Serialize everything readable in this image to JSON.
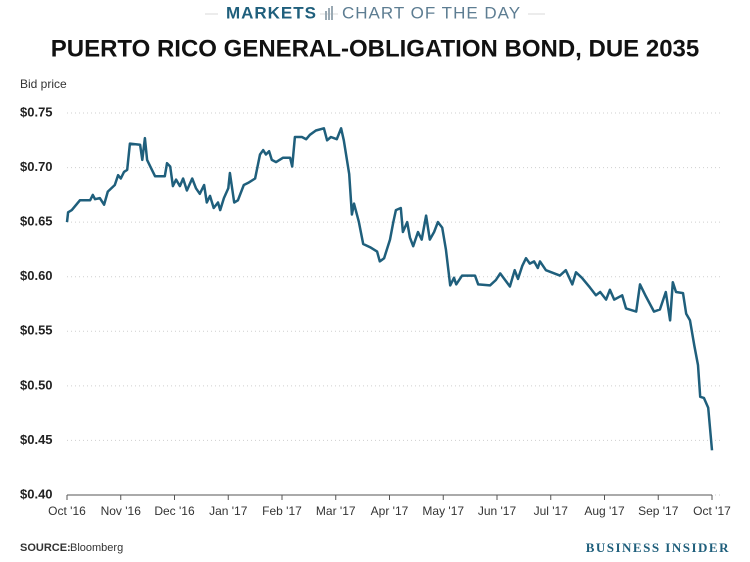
{
  "chart_data": {
    "type": "line",
    "kicker": "MARKETS",
    "kicker_sub": "CHART OF THE DAY",
    "title": "PUERTO RICO GENERAL-OBLIGATION BOND, DUE 2035",
    "ylabel": "Bid price",
    "source_label": "SOURCE:",
    "source": "Bloomberg",
    "brand": "BUSINESS INSIDER",
    "grid": true,
    "xlim": [
      0,
      12
    ],
    "ylim": [
      0.4,
      0.75
    ],
    "xticks": [
      {
        "value": 0,
        "label": "Oct '16"
      },
      {
        "value": 1,
        "label": "Nov '16"
      },
      {
        "value": 2,
        "label": "Dec '16"
      },
      {
        "value": 3,
        "label": "Jan '17"
      },
      {
        "value": 4,
        "label": "Feb '17"
      },
      {
        "value": 5,
        "label": "Mar '17"
      },
      {
        "value": 6,
        "label": "Apr '17"
      },
      {
        "value": 7,
        "label": "May '17"
      },
      {
        "value": 8,
        "label": "Jun '17"
      },
      {
        "value": 9,
        "label": "Jul '17"
      },
      {
        "value": 10,
        "label": "Aug '17"
      },
      {
        "value": 11,
        "label": "Sep '17"
      },
      {
        "value": 12,
        "label": "Oct '17"
      }
    ],
    "yticks": [
      {
        "value": 0.4,
        "label": "$0.40"
      },
      {
        "value": 0.45,
        "label": "$0.45"
      },
      {
        "value": 0.5,
        "label": "$0.50"
      },
      {
        "value": 0.55,
        "label": "$0.55"
      },
      {
        "value": 0.6,
        "label": "$0.60"
      },
      {
        "value": 0.65,
        "label": "$0.65"
      },
      {
        "value": 0.7,
        "label": "$0.70"
      },
      {
        "value": 0.75,
        "label": "$0.75"
      }
    ],
    "series": [
      {
        "name": "Bid price",
        "color": "#1f5f7c",
        "x": [
          0,
          0.02,
          0.09,
          0.24,
          0.43,
          0.48,
          0.52,
          0.61,
          0.69,
          0.76,
          0.89,
          0.95,
          1.0,
          1.06,
          1.12,
          1.17,
          1.36,
          1.4,
          1.45,
          1.49,
          1.58,
          1.64,
          1.82,
          1.86,
          1.92,
          1.97,
          2.03,
          2.1,
          2.16,
          2.23,
          2.33,
          2.4,
          2.47,
          2.55,
          2.6,
          2.66,
          2.73,
          2.81,
          2.85,
          2.92,
          3.0,
          3.03,
          3.11,
          3.18,
          3.29,
          3.37,
          3.5,
          3.59,
          3.65,
          3.7,
          3.76,
          3.81,
          3.89,
          4.02,
          4.15,
          4.19,
          4.24,
          4.37,
          4.45,
          4.52,
          4.63,
          4.78,
          4.84,
          4.91,
          5.02,
          5.1,
          5.15,
          5.25,
          5.3,
          5.34,
          5.43,
          5.51,
          5.64,
          5.77,
          5.82,
          5.9,
          6.01,
          6.07,
          6.12,
          6.21,
          6.25,
          6.33,
          6.38,
          6.44,
          6.53,
          6.6,
          6.68,
          6.75,
          6.83,
          6.9,
          6.98,
          7.05,
          7.13,
          7.2,
          7.24,
          7.35,
          7.59,
          7.65,
          7.87,
          7.98,
          8.06,
          8.15,
          8.24,
          8.33,
          8.39,
          8.47,
          8.54,
          8.61,
          8.69,
          8.76,
          8.8,
          8.91,
          9.17,
          9.28,
          9.4,
          9.47,
          9.58,
          9.73,
          9.84,
          9.92,
          10.03,
          10.1,
          10.18,
          10.33,
          10.4,
          10.59,
          10.66,
          10.77,
          10.92,
          11.03,
          11.14,
          11.22,
          11.27,
          11.33,
          11.46,
          11.52,
          11.59,
          11.67,
          11.74,
          11.78,
          11.85,
          11.93,
          12.0
        ],
        "values": [
          0.65,
          0.659,
          0.661,
          0.67,
          0.67,
          0.675,
          0.671,
          0.672,
          0.666,
          0.678,
          0.684,
          0.693,
          0.69,
          0.696,
          0.698,
          0.722,
          0.721,
          0.707,
          0.727,
          0.707,
          0.698,
          0.692,
          0.692,
          0.704,
          0.701,
          0.683,
          0.689,
          0.683,
          0.69,
          0.679,
          0.69,
          0.681,
          0.676,
          0.684,
          0.668,
          0.674,
          0.663,
          0.668,
          0.661,
          0.672,
          0.681,
          0.695,
          0.668,
          0.67,
          0.684,
          0.686,
          0.69,
          0.712,
          0.716,
          0.712,
          0.715,
          0.707,
          0.705,
          0.709,
          0.709,
          0.701,
          0.728,
          0.728,
          0.726,
          0.73,
          0.734,
          0.736,
          0.725,
          0.728,
          0.726,
          0.736,
          0.725,
          0.694,
          0.657,
          0.667,
          0.65,
          0.63,
          0.627,
          0.623,
          0.614,
          0.617,
          0.634,
          0.65,
          0.661,
          0.663,
          0.641,
          0.65,
          0.636,
          0.628,
          0.641,
          0.634,
          0.656,
          0.634,
          0.641,
          0.65,
          0.645,
          0.625,
          0.592,
          0.599,
          0.593,
          0.601,
          0.601,
          0.593,
          0.592,
          0.597,
          0.603,
          0.597,
          0.591,
          0.606,
          0.598,
          0.61,
          0.617,
          0.612,
          0.614,
          0.608,
          0.614,
          0.606,
          0.601,
          0.606,
          0.593,
          0.604,
          0.599,
          0.59,
          0.583,
          0.586,
          0.579,
          0.588,
          0.579,
          0.583,
          0.571,
          0.568,
          0.593,
          0.582,
          0.568,
          0.57,
          0.586,
          0.56,
          0.595,
          0.586,
          0.585,
          0.566,
          0.56,
          0.537,
          0.519,
          0.49,
          0.489,
          0.48,
          0.441
        ]
      }
    ]
  }
}
